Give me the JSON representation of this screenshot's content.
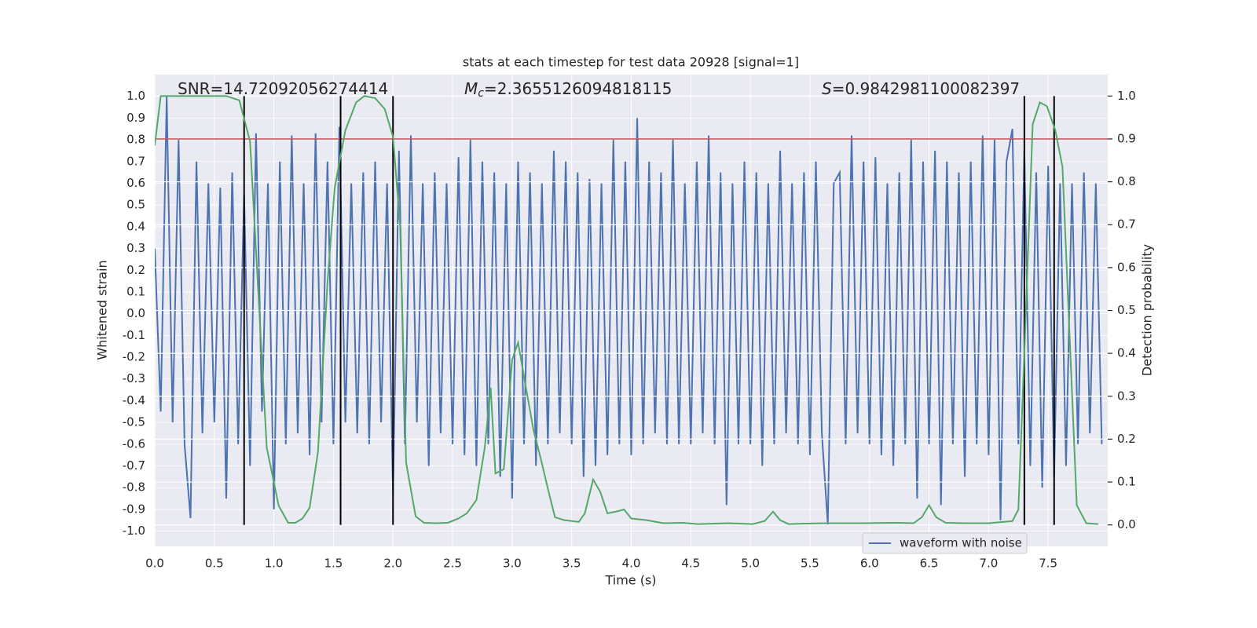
{
  "chart_data": {
    "type": "line",
    "title": "stats at each timestep for test data 20928 [signal=1]",
    "xlabel": "Time (s)",
    "ylabel": "Whitened strain",
    "y2label": "Detection probability",
    "xlim": [
      0,
      8
    ],
    "ylim": [
      -1.07,
      1.1
    ],
    "y2lim": [
      -0.05,
      1.05
    ],
    "xticks": [
      {
        "value": 0,
        "label": "0.0"
      },
      0.5,
      {
        "value": 1,
        "label": "1.0"
      },
      1.5,
      {
        "value": 2,
        "label": "2.0"
      },
      2.5,
      {
        "value": 3,
        "label": "3.0"
      },
      3.5,
      {
        "value": 4,
        "label": "4.0"
      },
      4.5,
      {
        "value": 5,
        "label": "5.0"
      },
      5.5,
      {
        "value": 6,
        "label": "6.0"
      },
      6.5,
      {
        "value": 7,
        "label": "7.0"
      },
      7.5
    ],
    "yticks": [
      {
        "value": -1,
        "label": "-1.0"
      },
      -0.9,
      -0.8,
      -0.7,
      -0.6,
      -0.5,
      -0.4,
      -0.3,
      -0.2,
      -0.1,
      {
        "value": 0,
        "label": "0.0"
      },
      0.1,
      0.2,
      0.3,
      0.4,
      0.5,
      0.6,
      0.7,
      0.8,
      0.9,
      {
        "value": 1,
        "label": "1.0"
      }
    ],
    "y2ticks": [
      {
        "value": 0,
        "label": "0.0"
      },
      0.1,
      0.2,
      0.3,
      0.4,
      0.5,
      0.6,
      0.7,
      0.8,
      0.9,
      {
        "value": 1,
        "label": "1.0"
      }
    ],
    "grid": true,
    "legend": "lower right",
    "annotations": [
      {
        "text": "SNR=14.72092056274414"
      },
      {
        "symbol": "M",
        "subscript": "c",
        "text": "=2.3655126094818115"
      },
      {
        "symbol": "S",
        "text": "=0.9842981100082397"
      }
    ],
    "threshold": {
      "value": 0.9,
      "axis": "y2",
      "color": "#c44e52"
    },
    "vlines": {
      "x": [
        0.75,
        1.56,
        2.0,
        7.3,
        7.55
      ],
      "ymin": 0,
      "ymax": 1,
      "axis": "y2",
      "color": "#000000"
    },
    "series": [
      {
        "name": "waveform with noise",
        "color": "#4c72b0",
        "x": [
          0,
          0.05,
          0.1,
          0.15,
          0.2,
          0.25,
          0.3,
          0.35,
          0.4,
          0.45,
          0.5,
          0.55,
          0.6,
          0.65,
          0.7,
          0.75,
          0.8,
          0.85,
          0.9,
          0.95,
          1,
          1.05,
          1.1,
          1.15,
          1.2,
          1.25,
          1.3,
          1.35,
          1.4,
          1.45,
          1.5,
          1.55,
          1.6,
          1.65,
          1.7,
          1.75,
          1.8,
          1.85,
          1.9,
          1.95,
          2,
          2.05,
          2.1,
          2.15,
          2.2,
          2.25,
          2.3,
          2.35,
          2.4,
          2.45,
          2.5,
          2.55,
          2.6,
          2.65,
          2.7,
          2.75,
          2.8,
          2.85,
          2.9,
          2.95,
          3,
          3.05,
          3.1,
          3.15,
          3.2,
          3.25,
          3.3,
          3.35,
          3.4,
          3.45,
          3.5,
          3.55,
          3.6,
          3.65,
          3.7,
          3.75,
          3.8,
          3.85,
          3.9,
          3.95,
          4,
          4.05,
          4.1,
          4.15,
          4.2,
          4.25,
          4.3,
          4.35,
          4.4,
          4.45,
          4.5,
          4.55,
          4.6,
          4.65,
          4.7,
          4.75,
          4.8,
          4.85,
          4.9,
          4.95,
          5,
          5.05,
          5.1,
          5.15,
          5.2,
          5.25,
          5.3,
          5.35,
          5.4,
          5.45,
          5.5,
          5.55,
          5.6,
          5.65,
          5.7,
          5.75,
          5.8,
          5.85,
          5.9,
          5.95,
          6,
          6.05,
          6.1,
          6.15,
          6.2,
          6.25,
          6.3,
          6.35,
          6.4,
          6.45,
          6.5,
          6.55,
          6.6,
          6.65,
          6.7,
          6.75,
          6.8,
          6.85,
          6.9,
          6.95,
          7,
          7.05,
          7.1,
          7.15,
          7.2,
          7.25,
          7.3,
          7.35,
          7.4,
          7.45,
          7.5,
          7.55,
          7.6,
          7.65,
          7.7,
          7.75,
          7.8,
          7.85,
          7.9,
          7.95
        ],
        "values": [
          0.3,
          -0.45,
          1.0,
          -0.5,
          0.8,
          -0.6,
          -0.94,
          0.7,
          -0.55,
          0.6,
          -0.5,
          0.58,
          -0.85,
          0.65,
          -0.6,
          0.55,
          -0.7,
          0.83,
          -0.45,
          0.6,
          -0.9,
          0.7,
          -0.6,
          0.82,
          -0.55,
          0.6,
          -0.65,
          0.83,
          -0.5,
          0.7,
          -0.6,
          0.86,
          -0.5,
          0.6,
          -0.55,
          0.65,
          -0.6,
          0.7,
          -0.5,
          0.6,
          -0.83,
          0.75,
          -0.6,
          0.82,
          -0.5,
          0.6,
          -0.7,
          0.65,
          -0.55,
          0.6,
          -0.6,
          0.72,
          -0.65,
          0.8,
          -0.7,
          0.7,
          -0.6,
          0.65,
          -0.75,
          0.6,
          -0.85,
          0.7,
          -0.6,
          0.65,
          -0.7,
          0.6,
          -0.6,
          0.75,
          -0.55,
          0.7,
          -0.6,
          0.65,
          -0.75,
          0.62,
          -0.7,
          0.6,
          -0.65,
          0.8,
          -0.6,
          0.7,
          -0.65,
          0.9,
          -0.6,
          0.7,
          -0.55,
          0.65,
          -0.6,
          0.8,
          -0.6,
          0.6,
          -0.6,
          0.7,
          -0.55,
          0.82,
          -0.6,
          0.65,
          -0.88,
          0.6,
          -0.6,
          0.7,
          -0.6,
          0.65,
          -0.7,
          0.6,
          -0.6,
          0.75,
          -0.55,
          0.6,
          -0.6,
          0.65,
          -0.65,
          0.7,
          -0.55,
          -0.97,
          0.6,
          0.65,
          -0.6,
          0.82,
          -0.55,
          0.7,
          -0.6,
          0.72,
          -0.65,
          0.6,
          -0.7,
          0.65,
          -0.6,
          0.8,
          -0.85,
          0.7,
          -0.6,
          0.75,
          -0.88,
          0.7,
          -0.6,
          0.65,
          -0.75,
          0.7,
          -0.6,
          0.82,
          -0.65,
          0.8,
          -0.95,
          0.7,
          0.85,
          -0.6,
          0.75,
          -0.7,
          0.65,
          -0.8,
          0.68,
          -0.75,
          0.6,
          -0.7,
          0.6,
          -0.6,
          0.65,
          -0.55,
          0.6,
          -0.6
        ]
      },
      {
        "color": "#55a868",
        "axis": "y2",
        "x": [
          0,
          0.05,
          0.6,
          0.71,
          0.8,
          0.94,
          1.04,
          1.12,
          1.18,
          1.24,
          1.3,
          1.37,
          1.45,
          1.51,
          1.6,
          1.69,
          1.76,
          1.85,
          1.93,
          2.0,
          2.06,
          2.11,
          2.19,
          2.26,
          2.36,
          2.46,
          2.55,
          2.62,
          2.7,
          2.77,
          2.82,
          2.86,
          2.93,
          3.0,
          3.05,
          3.1,
          3.18,
          3.24,
          3.31,
          3.36,
          3.44,
          3.56,
          3.61,
          3.68,
          3.74,
          3.8,
          3.87,
          3.94,
          4.0,
          4.13,
          4.27,
          4.43,
          4.56,
          4.82,
          5.02,
          5.12,
          5.19,
          5.25,
          5.32,
          5.62,
          5.94,
          6.21,
          6.37,
          6.44,
          6.5,
          6.56,
          6.64,
          6.8,
          7.0,
          7.2,
          7.25,
          7.3,
          7.37,
          7.43,
          7.49,
          7.56,
          7.62,
          7.74,
          7.82,
          7.92
        ],
        "values": [
          0.885,
          1.0,
          1.0,
          0.99,
          0.894,
          0.18,
          0.045,
          0.005,
          0.005,
          0.015,
          0.04,
          0.17,
          0.565,
          0.785,
          0.92,
          0.985,
          1.0,
          0.995,
          0.97,
          0.905,
          0.695,
          0.145,
          0.02,
          0.005,
          0.004,
          0.005,
          0.015,
          0.027,
          0.058,
          0.18,
          0.32,
          0.12,
          0.13,
          0.385,
          0.425,
          0.345,
          0.22,
          0.155,
          0.073,
          0.018,
          0.011,
          0.007,
          0.027,
          0.106,
          0.077,
          0.027,
          0.031,
          0.036,
          0.015,
          0.011,
          0.004,
          0.005,
          0.002,
          0.004,
          0.002,
          0.009,
          0.031,
          0.011,
          0.002,
          0.004,
          0.004,
          0.005,
          0.004,
          0.018,
          0.046,
          0.018,
          0.005,
          0.004,
          0.004,
          0.009,
          0.036,
          0.4,
          0.934,
          0.985,
          0.976,
          0.92,
          0.835,
          0.046,
          0.004,
          0.002
        ]
      }
    ]
  }
}
